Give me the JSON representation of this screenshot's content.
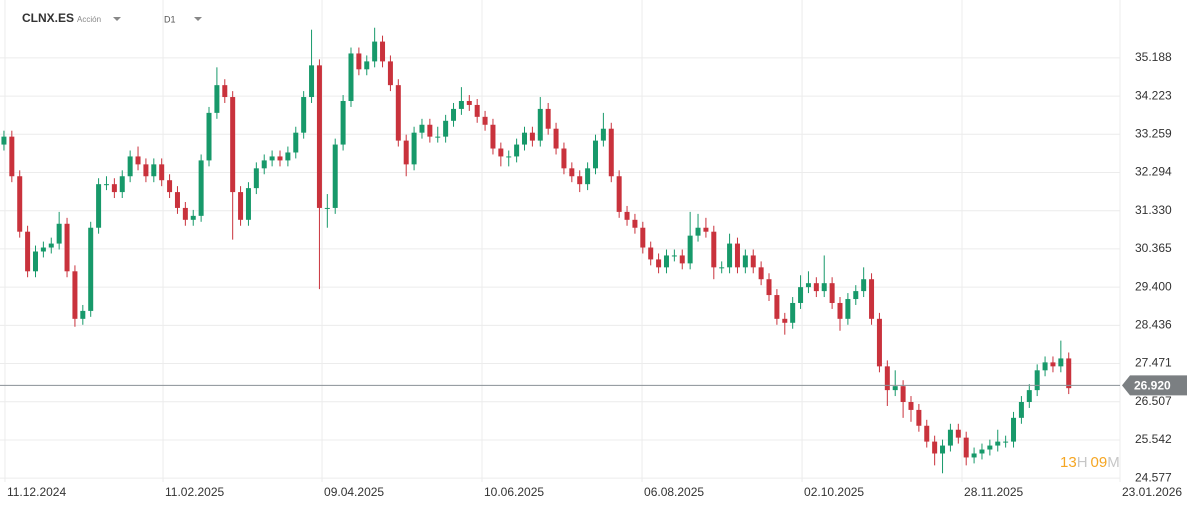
{
  "header": {
    "symbol": "CLNX.ES",
    "asset_type": "Acción",
    "timeframe": "D1"
  },
  "timer": {
    "hours": "13",
    "hours_unit": "H",
    "minutes": "09",
    "minutes_unit": "M"
  },
  "chart_data": {
    "type": "candlestick",
    "up_color": "#17996a",
    "down_color": "#c9323c",
    "grid": true,
    "ylim": [
      24.48,
      36.65
    ],
    "yticks": [
      35.188,
      34.223,
      33.259,
      32.294,
      {
        "value": 31.33,
        "label": "31.330"
      },
      30.365,
      {
        "value": 29.4,
        "label": "29.400"
      },
      28.436,
      27.471,
      26.507,
      25.542,
      24.577
    ],
    "xlim": [
      -0.5,
      141.5
    ],
    "xticks": [
      {
        "value": 0.13,
        "label": "11.12.2024"
      },
      {
        "value": 20.17,
        "label": "11.02.2025"
      },
      {
        "value": 40.33,
        "label": "09.04.2025"
      },
      {
        "value": 60.61,
        "label": "10.06.2025"
      },
      {
        "value": 80.9,
        "label": "06.08.2025"
      },
      {
        "value": 101.19,
        "label": "02.10.2025"
      },
      {
        "value": 121.47,
        "label": "28.11.2025"
      },
      {
        "value": 141.5,
        "label": "23.01.2026"
      }
    ],
    "last_price": {
      "value": 26.92,
      "label": "26.920"
    },
    "candles": [
      [
        33.0,
        33.35,
        32.85,
        33.2
      ],
      [
        33.2,
        33.35,
        32.05,
        32.2
      ],
      [
        32.2,
        32.35,
        30.65,
        30.8
      ],
      [
        30.8,
        30.95,
        29.65,
        29.8
      ],
      [
        29.8,
        30.45,
        29.65,
        30.3
      ],
      [
        30.3,
        30.55,
        30.15,
        30.4
      ],
      [
        30.4,
        30.65,
        30.25,
        30.5
      ],
      [
        30.5,
        31.3,
        30.35,
        31.0
      ],
      [
        31.0,
        31.15,
        29.65,
        29.8
      ],
      [
        29.8,
        29.95,
        28.4,
        28.6
      ],
      [
        28.6,
        28.95,
        28.45,
        28.8
      ],
      [
        28.8,
        31.05,
        28.65,
        30.9
      ],
      [
        30.9,
        32.15,
        30.75,
        32.0
      ],
      [
        32.0,
        32.2,
        31.85,
        32.0
      ],
      [
        32.0,
        32.15,
        31.65,
        31.8
      ],
      [
        31.8,
        32.35,
        31.65,
        32.2
      ],
      [
        32.2,
        32.85,
        32.05,
        32.7
      ],
      [
        32.7,
        32.95,
        32.35,
        32.5
      ],
      [
        32.5,
        32.65,
        32.05,
        32.2
      ],
      [
        32.2,
        32.65,
        32.05,
        32.5
      ],
      [
        32.5,
        32.65,
        31.95,
        32.1
      ],
      [
        32.1,
        32.25,
        31.65,
        31.8
      ],
      [
        31.8,
        31.95,
        31.25,
        31.4
      ],
      [
        31.4,
        31.55,
        30.95,
        31.1
      ],
      [
        31.1,
        31.35,
        30.95,
        31.2
      ],
      [
        31.2,
        32.75,
        31.05,
        32.6
      ],
      [
        32.6,
        33.95,
        32.45,
        33.8
      ],
      [
        33.8,
        34.95,
        33.65,
        34.5
      ],
      [
        34.5,
        34.65,
        34.05,
        34.2
      ],
      [
        34.2,
        34.35,
        30.6,
        31.8
      ],
      [
        31.8,
        31.95,
        30.95,
        31.1
      ],
      [
        31.1,
        32.05,
        30.95,
        31.9
      ],
      [
        31.9,
        32.55,
        31.75,
        32.4
      ],
      [
        32.4,
        32.75,
        32.25,
        32.6
      ],
      [
        32.6,
        32.85,
        32.45,
        32.7
      ],
      [
        32.7,
        32.85,
        32.45,
        32.6
      ],
      [
        32.6,
        32.95,
        32.45,
        32.8
      ],
      [
        32.8,
        33.45,
        32.65,
        33.3
      ],
      [
        33.3,
        34.35,
        33.15,
        34.2
      ],
      [
        34.2,
        35.9,
        34.05,
        35.0
      ],
      [
        35.0,
        35.15,
        29.35,
        31.4
      ],
      [
        31.4,
        31.75,
        30.9,
        31.4
      ],
      [
        31.4,
        33.15,
        31.25,
        33.0
      ],
      [
        33.0,
        34.25,
        32.85,
        34.1
      ],
      [
        34.1,
        35.45,
        33.95,
        35.3
      ],
      [
        35.3,
        35.45,
        34.75,
        34.9
      ],
      [
        34.9,
        35.25,
        34.75,
        35.1
      ],
      [
        35.1,
        35.95,
        34.95,
        35.6
      ],
      [
        35.6,
        35.75,
        34.95,
        35.1
      ],
      [
        35.1,
        35.25,
        34.35,
        34.5
      ],
      [
        34.5,
        34.65,
        32.95,
        33.1
      ],
      [
        33.1,
        33.25,
        32.2,
        32.5
      ],
      [
        32.5,
        33.45,
        32.35,
        33.3
      ],
      [
        33.3,
        33.65,
        33.15,
        33.5
      ],
      [
        33.5,
        33.65,
        33.05,
        33.2
      ],
      [
        33.2,
        33.45,
        33.05,
        33.2
      ],
      [
        33.2,
        33.75,
        33.05,
        33.6
      ],
      [
        33.6,
        34.05,
        33.45,
        33.9
      ],
      [
        33.9,
        34.45,
        33.75,
        34.1
      ],
      [
        34.1,
        34.25,
        33.85,
        34.0
      ],
      [
        34.0,
        34.15,
        33.55,
        33.7
      ],
      [
        33.7,
        33.85,
        33.35,
        33.5
      ],
      [
        33.5,
        33.65,
        32.75,
        32.9
      ],
      [
        32.9,
        33.05,
        32.45,
        32.7
      ],
      [
        32.7,
        32.85,
        32.45,
        32.7
      ],
      [
        32.7,
        33.15,
        32.55,
        33.0
      ],
      [
        33.0,
        33.45,
        32.85,
        33.3
      ],
      [
        33.3,
        33.45,
        32.95,
        33.1
      ],
      [
        33.1,
        34.2,
        32.95,
        33.9
      ],
      [
        33.9,
        34.05,
        33.25,
        33.4
      ],
      [
        33.4,
        33.55,
        32.75,
        32.9
      ],
      [
        32.9,
        33.05,
        32.25,
        32.4
      ],
      [
        32.4,
        32.55,
        32.05,
        32.2
      ],
      [
        32.2,
        32.35,
        31.8,
        32.0
      ],
      [
        32.0,
        32.55,
        31.85,
        32.4
      ],
      [
        32.4,
        33.25,
        32.25,
        33.1
      ],
      [
        33.1,
        33.8,
        32.95,
        33.4
      ],
      [
        33.4,
        33.55,
        32.05,
        32.2
      ],
      [
        32.2,
        32.35,
        31.15,
        31.3
      ],
      [
        31.3,
        31.45,
        30.95,
        31.1
      ],
      [
        31.1,
        31.25,
        30.75,
        30.9
      ],
      [
        30.9,
        31.05,
        30.25,
        30.4
      ],
      [
        30.4,
        30.55,
        29.95,
        30.1
      ],
      [
        30.1,
        30.25,
        29.75,
        29.9
      ],
      [
        29.9,
        30.35,
        29.75,
        30.2
      ],
      [
        30.2,
        30.35,
        30.05,
        30.2
      ],
      [
        30.2,
        30.35,
        29.85,
        30.0
      ],
      [
        30.0,
        31.3,
        29.85,
        30.7
      ],
      [
        30.7,
        31.25,
        30.55,
        30.9
      ],
      [
        30.9,
        31.15,
        30.65,
        30.8
      ],
      [
        30.8,
        30.95,
        29.6,
        29.9
      ],
      [
        29.9,
        30.05,
        29.75,
        29.9
      ],
      [
        29.9,
        30.75,
        29.75,
        30.5
      ],
      [
        30.5,
        30.65,
        29.75,
        29.9
      ],
      [
        29.9,
        30.35,
        29.75,
        30.2
      ],
      [
        30.2,
        30.35,
        29.75,
        29.9
      ],
      [
        29.9,
        30.05,
        29.45,
        29.6
      ],
      [
        29.6,
        29.75,
        29.05,
        29.2
      ],
      [
        29.2,
        29.35,
        28.45,
        28.6
      ],
      [
        28.6,
        28.75,
        28.2,
        28.5
      ],
      [
        28.5,
        29.15,
        28.35,
        29.0
      ],
      [
        29.0,
        29.7,
        28.85,
        29.4
      ],
      [
        29.4,
        29.8,
        29.25,
        29.5
      ],
      [
        29.5,
        29.65,
        29.15,
        29.3
      ],
      [
        29.3,
        30.2,
        29.15,
        29.5
      ],
      [
        29.5,
        29.65,
        28.85,
        29.0
      ],
      [
        29.0,
        29.15,
        28.3,
        28.6
      ],
      [
        28.6,
        29.25,
        28.45,
        29.1
      ],
      [
        29.1,
        29.45,
        28.95,
        29.3
      ],
      [
        29.3,
        29.9,
        29.15,
        29.6
      ],
      [
        29.6,
        29.75,
        28.45,
        28.6
      ],
      [
        28.6,
        28.75,
        27.25,
        27.4
      ],
      [
        27.4,
        27.55,
        26.4,
        26.8
      ],
      [
        26.8,
        27.3,
        26.65,
        26.9
      ],
      [
        26.9,
        27.05,
        26.1,
        26.5
      ],
      [
        26.5,
        26.65,
        26.0,
        26.3
      ],
      [
        26.3,
        26.45,
        25.75,
        25.9
      ],
      [
        25.9,
        26.05,
        25.35,
        25.5
      ],
      [
        25.5,
        25.65,
        24.9,
        25.2
      ],
      [
        25.2,
        25.55,
        24.7,
        25.4
      ],
      [
        25.4,
        25.95,
        25.25,
        25.8
      ],
      [
        25.8,
        25.95,
        25.45,
        25.6
      ],
      [
        25.6,
        25.75,
        24.9,
        25.1
      ],
      [
        25.1,
        25.35,
        24.95,
        25.2
      ],
      [
        25.2,
        25.45,
        25.05,
        25.3
      ],
      [
        25.3,
        25.55,
        25.15,
        25.4
      ],
      [
        25.4,
        25.8,
        25.25,
        25.5
      ],
      [
        25.5,
        25.65,
        25.35,
        25.5
      ],
      [
        25.5,
        26.25,
        25.35,
        26.1
      ],
      [
        26.1,
        26.65,
        25.95,
        26.5
      ],
      [
        26.5,
        26.95,
        26.35,
        26.8
      ],
      [
        26.8,
        27.45,
        26.65,
        27.3
      ],
      [
        27.3,
        27.65,
        27.15,
        27.5
      ],
      [
        27.5,
        27.65,
        27.25,
        27.4
      ],
      [
        27.4,
        28.05,
        27.25,
        27.6
      ],
      [
        27.6,
        27.75,
        26.7,
        26.85
      ]
    ]
  }
}
